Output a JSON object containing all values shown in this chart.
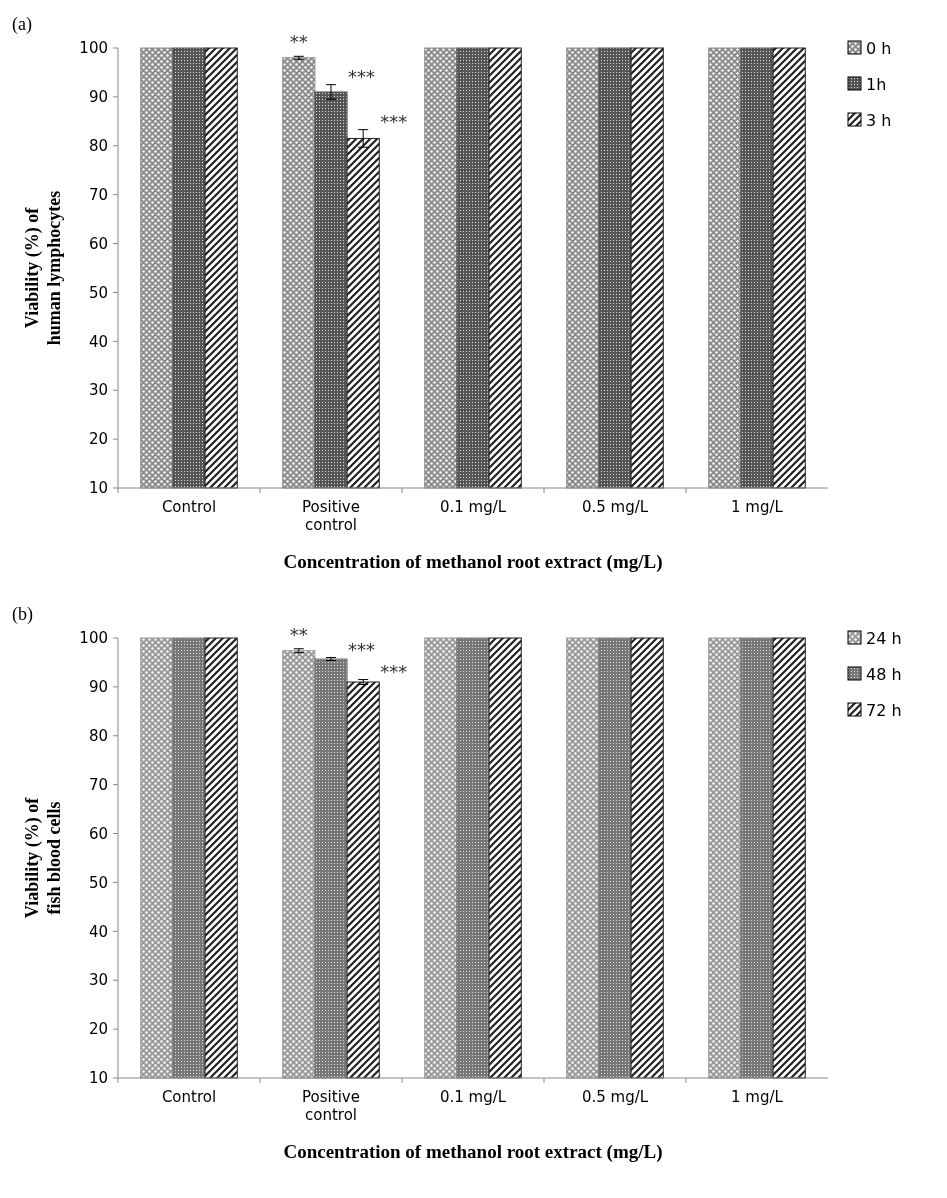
{
  "chart_data": [
    {
      "type": "bar",
      "title": "(a)",
      "xlabel": "Concentration  of methanol root extract (mg/L)",
      "ylabel": "Viability  (%)  of human lymphocytes",
      "categories": [
        "Control",
        "Positive control",
        "0.1 mg/L",
        "0.5 mg/L",
        "1 mg/L"
      ],
      "series": [
        {
          "name": "0 h",
          "color": "#8c8c8c",
          "values": [
            100,
            98,
            100,
            100,
            100
          ],
          "errors": [
            null,
            0.3,
            null,
            null,
            null
          ]
        },
        {
          "name": "1h",
          "color": "#555555",
          "values": [
            100,
            91,
            100,
            100,
            100
          ],
          "errors": [
            null,
            1.5,
            null,
            null,
            null
          ]
        },
        {
          "name": "3 h",
          "color": "#222222",
          "values": [
            100,
            81.5,
            100,
            100,
            100
          ],
          "errors": [
            null,
            1.8,
            null,
            null,
            null
          ]
        }
      ],
      "ylim": [
        10,
        100
      ],
      "yticks": [
        10,
        20,
        30,
        40,
        50,
        60,
        70,
        80,
        90,
        100
      ],
      "grid": false,
      "legend": "right",
      "annotations": [
        "**",
        "***",
        "***"
      ]
    },
    {
      "type": "bar",
      "title": "(b)",
      "xlabel": "Concentration  of methanol root extract (mg/L)",
      "ylabel": "Viability (%) of fish  blood cells",
      "categories": [
        "Control",
        "Positive control",
        "0.1 mg/L",
        "0.5 mg/L",
        "1 mg/L"
      ],
      "series": [
        {
          "name": "24 h",
          "color": "#9a9a9a",
          "values": [
            100,
            97.4,
            100,
            100,
            100
          ],
          "errors": [
            null,
            0.4,
            null,
            null,
            null
          ]
        },
        {
          "name": "48 h",
          "color": "#777777",
          "values": [
            100,
            95.7,
            100,
            100,
            100
          ],
          "errors": [
            null,
            0.3,
            null,
            null,
            null
          ]
        },
        {
          "name": "72 h",
          "color": "#222222",
          "values": [
            100,
            91,
            100,
            100,
            100
          ],
          "errors": [
            null,
            0.5,
            null,
            null,
            null
          ]
        }
      ],
      "ylim": [
        10,
        100
      ],
      "yticks": [
        10,
        20,
        30,
        40,
        50,
        60,
        70,
        80,
        90,
        100
      ],
      "grid": false,
      "legend": "right",
      "annotations": [
        "**",
        "***",
        "***"
      ]
    }
  ]
}
